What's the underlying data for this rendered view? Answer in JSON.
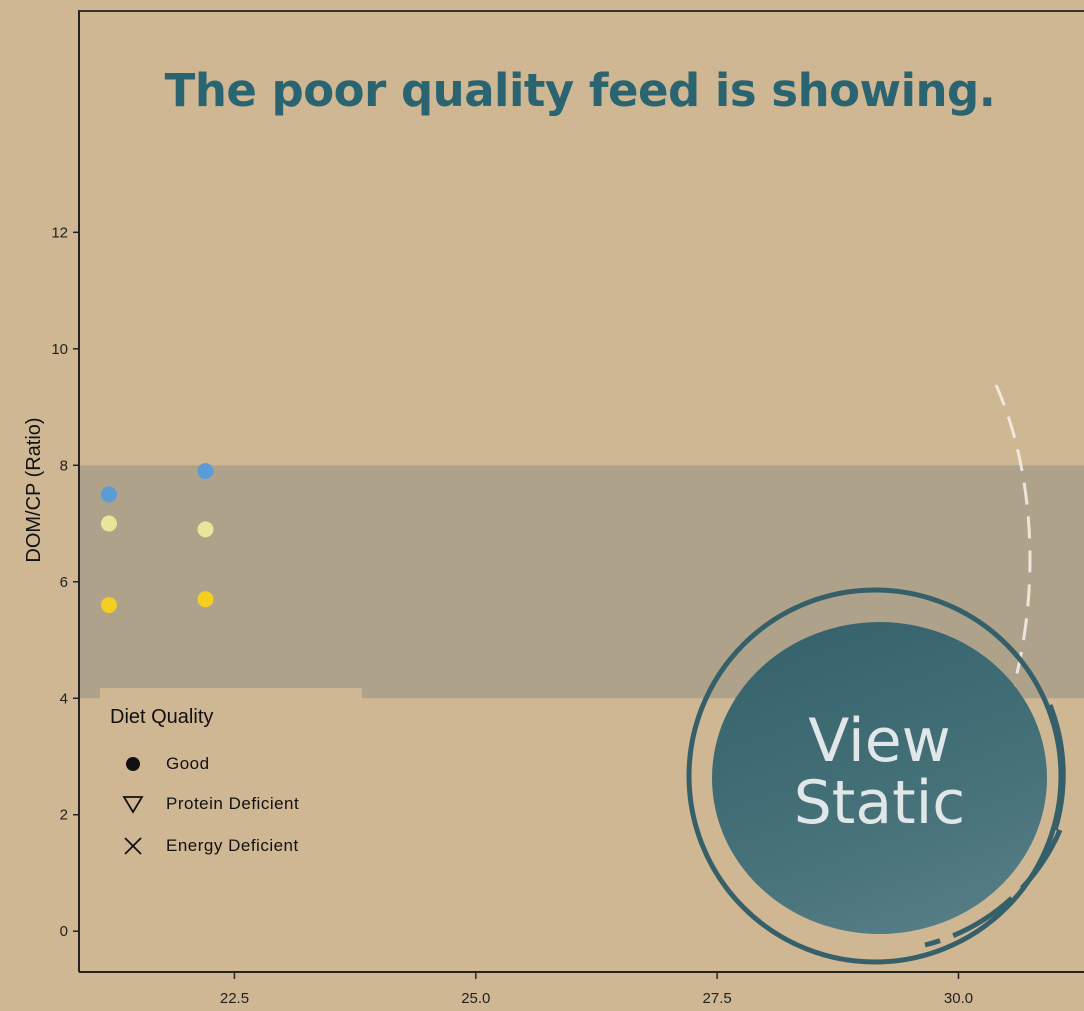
{
  "banner": {
    "text": "The poor quality feed is showing."
  },
  "view_static": {
    "label": "View\nStatic"
  },
  "legend": {
    "title": "Diet Quality",
    "items": [
      {
        "label": "Good",
        "symbol": "circle-icon"
      },
      {
        "label": "Protein Deficient",
        "symbol": "triangle-down-icon"
      },
      {
        "label": "Energy Deficient",
        "symbol": "cross-icon"
      }
    ]
  },
  "chart_data": {
    "type": "scatter",
    "ylabel": "DOM/CP (Ratio)",
    "xlim": [
      20.9,
      31.3
    ],
    "ylim": [
      -0.7,
      15.8
    ],
    "x_ticks": [
      22.5,
      25.0,
      27.5,
      30.0
    ],
    "x_tick_labels": [
      "22.5",
      "25.0",
      "27.5",
      "30.0"
    ],
    "y_ticks": [
      0,
      2,
      4,
      6,
      8,
      10,
      12
    ],
    "y_tick_labels": [
      "0",
      "2",
      "4",
      "6",
      "8",
      "10",
      "12"
    ],
    "optimal_band": {
      "y_min": 4,
      "y_max": 8,
      "color": "#aea38a"
    },
    "points": [
      {
        "x": 21.2,
        "y": 7.5,
        "color": "#5b9bd8"
      },
      {
        "x": 21.2,
        "y": 7.0,
        "color": "#e9e59b"
      },
      {
        "x": 21.2,
        "y": 5.6,
        "color": "#f6ce21"
      },
      {
        "x": 22.2,
        "y": 7.9,
        "color": "#5b9bd8"
      },
      {
        "x": 22.2,
        "y": 6.9,
        "color": "#e9e59b"
      },
      {
        "x": 22.2,
        "y": 5.7,
        "color": "#f6ce21"
      }
    ],
    "grid": false,
    "legend_position": "bottom-left"
  }
}
